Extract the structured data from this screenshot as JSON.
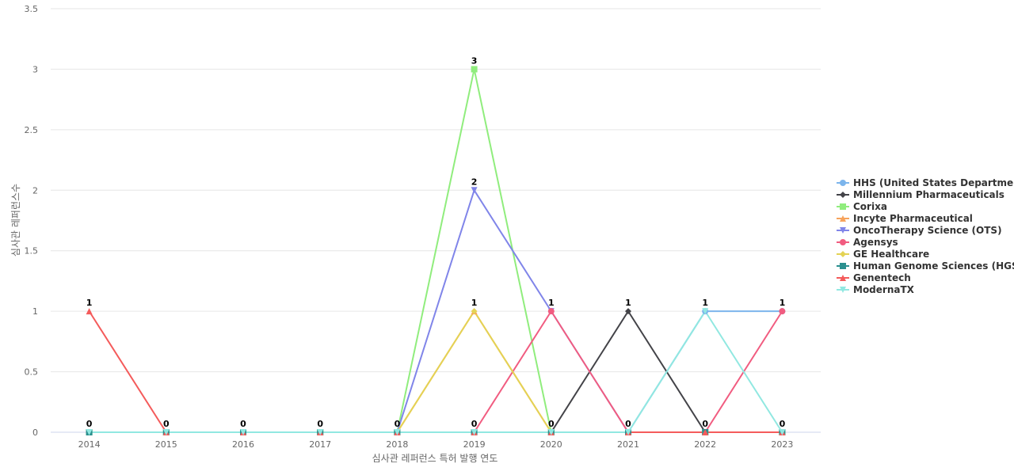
{
  "chart_data": {
    "type": "line",
    "title": "",
    "xlabel": "심사관 레퍼런스 특허 발행 연도",
    "ylabel": "심사관 레퍼런스수",
    "ylim": [
      0,
      3.5
    ],
    "y_ticks": [
      "0",
      "0.5",
      "1",
      "1.5",
      "2",
      "2.5",
      "3",
      "3.5"
    ],
    "x": [
      "2014",
      "2015",
      "2016",
      "2017",
      "2018",
      "2019",
      "2020",
      "2021",
      "2022",
      "2023"
    ],
    "grid": "horizontal",
    "legend_position": "right",
    "series": [
      {
        "name": "HHS (United States Departme...",
        "color": "#7cb5ec",
        "marker": "circle",
        "values": [
          0,
          0,
          0,
          0,
          0,
          0,
          0,
          0,
          1,
          1
        ]
      },
      {
        "name": "Millennium Pharmaceuticals",
        "color": "#434348",
        "marker": "diamond",
        "values": [
          0,
          0,
          0,
          0,
          0,
          0,
          0,
          1,
          0,
          0
        ]
      },
      {
        "name": "Corixa",
        "color": "#90ed7d",
        "marker": "square",
        "values": [
          0,
          0,
          0,
          0,
          0,
          3,
          0,
          0,
          0,
          0
        ]
      },
      {
        "name": "Incyte Pharmaceutical",
        "color": "#f7a35c",
        "marker": "triangle",
        "values": [
          0,
          0,
          0,
          0,
          0,
          1,
          0,
          0,
          0,
          0
        ]
      },
      {
        "name": "OncoTherapy Science (OTS)",
        "color": "#8085e9",
        "marker": "triangle-down",
        "values": [
          0,
          0,
          0,
          0,
          0,
          2,
          1,
          0,
          0,
          0
        ]
      },
      {
        "name": "Agensys",
        "color": "#f15c80",
        "marker": "circle",
        "values": [
          0,
          0,
          0,
          0,
          0,
          0,
          1,
          0,
          0,
          1
        ]
      },
      {
        "name": "GE Healthcare",
        "color": "#e4d354",
        "marker": "diamond",
        "values": [
          0,
          0,
          0,
          0,
          0,
          1,
          0,
          0,
          0,
          0
        ]
      },
      {
        "name": "Human Genome Sciences (HGS)",
        "color": "#2b908f",
        "marker": "square",
        "values": [
          0,
          0,
          0,
          0,
          0,
          0,
          0,
          0,
          0,
          0
        ]
      },
      {
        "name": "Genentech",
        "color": "#f45b5b",
        "marker": "triangle",
        "values": [
          1,
          0,
          0,
          0,
          0,
          0,
          0,
          0,
          0,
          0
        ]
      },
      {
        "name": "ModernaTX",
        "color": "#91e8e1",
        "marker": "triangle-down",
        "values": [
          0,
          0,
          0,
          0,
          0,
          0,
          0,
          0,
          1,
          0
        ]
      }
    ],
    "data_labels": [
      "1",
      "0",
      "0",
      "0",
      "0",
      "3",
      "1",
      "1",
      "1",
      "1"
    ],
    "data_labels_low": [
      "0",
      "",
      "",
      "",
      "",
      "2",
      "",
      "",
      "",
      ""
    ],
    "data_labels_mid": [
      "",
      "",
      "",
      "",
      "",
      "1",
      "",
      "",
      "",
      ""
    ],
    "data_labels_zero": [
      "",
      "",
      "",
      "",
      "",
      "0",
      "0",
      "0",
      "0",
      "0"
    ]
  }
}
